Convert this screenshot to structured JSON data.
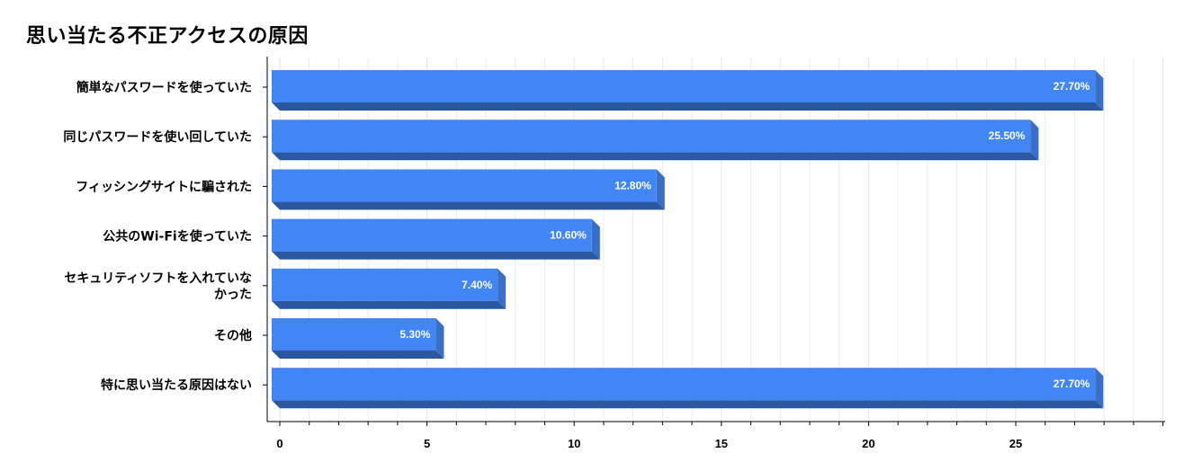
{
  "chart_data": {
    "type": "bar",
    "orientation": "horizontal",
    "title": "思い当たる不正アクセスの原因",
    "categories": [
      "簡単なパスワードを使っていた",
      "同じパスワードを使い回していた",
      "フィッシングサイトに騙された",
      "公共のWi-Fiを使っていた",
      "セキュリティソフトを入れていなかった",
      "その他",
      "特に思い当たる原因はない"
    ],
    "category_lines": [
      [
        "簡単なパスワードを使っていた"
      ],
      [
        "同じパスワードを使い回していた"
      ],
      [
        "フィッシングサイトに騙された"
      ],
      [
        "公共のWi-Fiを使っていた"
      ],
      [
        "セキュリティソフトを入れていな",
        "かった"
      ],
      [
        "その他"
      ],
      [
        "特に思い当たる原因はない"
      ]
    ],
    "values": [
      27.7,
      25.5,
      12.8,
      10.6,
      7.4,
      5.3,
      27.7
    ],
    "value_labels": [
      "27.70%",
      "25.50%",
      "12.80%",
      "10.60%",
      "7.40%",
      "5.30%",
      "27.70%"
    ],
    "xlim": [
      0,
      30
    ],
    "xticks": [
      0,
      5,
      10,
      15,
      20,
      25
    ],
    "xtick_labels": [
      "0",
      "5",
      "10",
      "15",
      "20",
      "25"
    ],
    "xlabel": "",
    "ylabel": "",
    "grid": true,
    "style": "3d",
    "colors": {
      "bar_front": "#4285f4",
      "bar_side": "#3a6fc8",
      "bar_bottom": "#2b56a0",
      "grid": "#e6e6e6",
      "axis": "#000000"
    }
  }
}
